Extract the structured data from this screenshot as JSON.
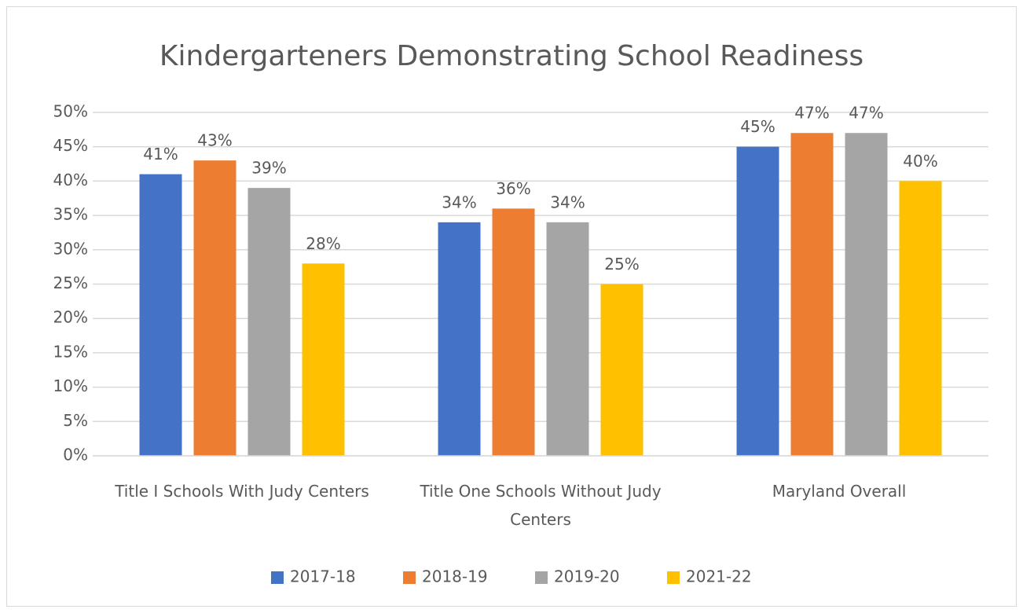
{
  "chart_data": {
    "type": "bar",
    "title": "Kindergarteners Demonstrating School Readiness",
    "categories": [
      "Title I Schools With Judy Centers",
      "Title One Schools Without Judy Centers",
      "Maryland Overall"
    ],
    "series": [
      {
        "name": "2017-18",
        "color": "#4472c4",
        "values": [
          41,
          34,
          45
        ],
        "value_labels": [
          "41%",
          "34%",
          "45%"
        ]
      },
      {
        "name": "2018-19",
        "color": "#ed7d31",
        "values": [
          43,
          36,
          47
        ],
        "value_labels": [
          "43%",
          "36%",
          "47%"
        ]
      },
      {
        "name": "2019-20",
        "color": "#a5a5a5",
        "values": [
          39,
          34,
          47
        ],
        "value_labels": [
          "39%",
          "34%",
          "47%"
        ]
      },
      {
        "name": "2021-22",
        "color": "#ffc000",
        "values": [
          28,
          25,
          40
        ],
        "value_labels": [
          "28%",
          "25%",
          "40%"
        ]
      }
    ],
    "ylim": [
      0,
      50
    ],
    "yticks": [
      {
        "value": 0,
        "label": "0%"
      },
      {
        "value": 5,
        "label": "5%"
      },
      {
        "value": 10,
        "label": "10%"
      },
      {
        "value": 15,
        "label": "15%"
      },
      {
        "value": 20,
        "label": "20%"
      },
      {
        "value": 25,
        "label": "25%"
      },
      {
        "value": 30,
        "label": "30%"
      },
      {
        "value": 35,
        "label": "35%"
      },
      {
        "value": 40,
        "label": "40%"
      },
      {
        "value": 45,
        "label": "45%"
      },
      {
        "value": 50,
        "label": "50%"
      }
    ],
    "grid": true,
    "legend": "bottom"
  }
}
